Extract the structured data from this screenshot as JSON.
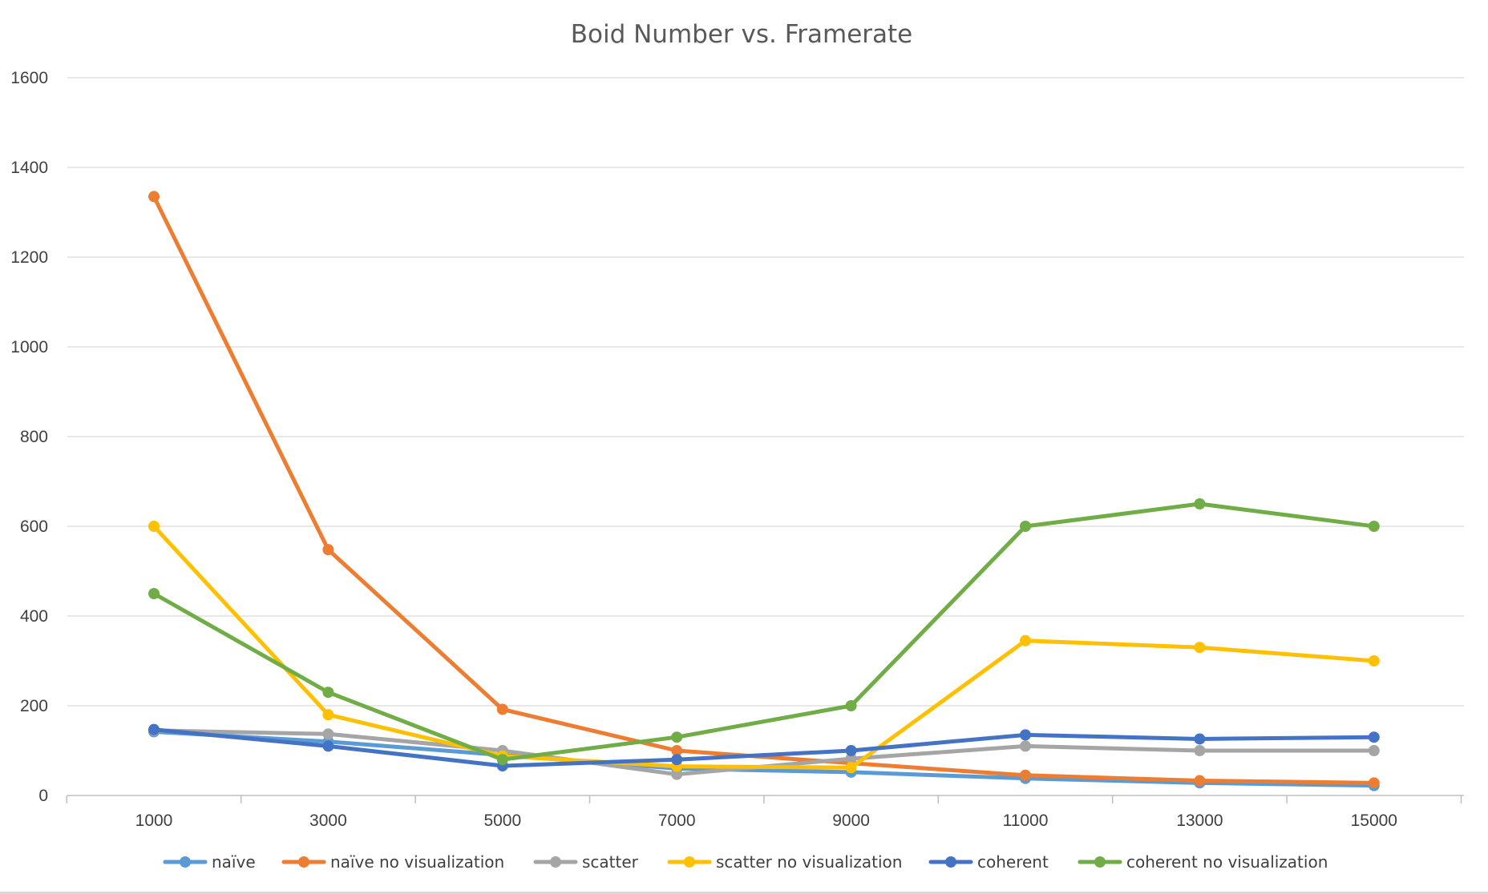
{
  "chart_data": {
    "type": "line",
    "title": "Boid Number vs. Framerate",
    "xlabel": "",
    "ylabel": "",
    "categories": [
      "1000",
      "3000",
      "5000",
      "7000",
      "9000",
      "11000",
      "13000",
      "15000"
    ],
    "ylim": [
      0,
      1600
    ],
    "yticks": [
      "0",
      "200",
      "400",
      "600",
      "800",
      "1000",
      "1200",
      "1400",
      "1600"
    ],
    "grid": "horizontal",
    "legend_position": "bottom",
    "series": [
      {
        "name": "naïve",
        "color": "#5b9bd5",
        "values": [
          142,
          120,
          90,
          60,
          52,
          38,
          28,
          22
        ]
      },
      {
        "name": "naïve no visualization",
        "color": "#ed7d31",
        "values": [
          1335,
          548,
          192,
          100,
          72,
          45,
          33,
          28
        ]
      },
      {
        "name": "scatter",
        "color": "#a5a5a5",
        "values": [
          145,
          137,
          100,
          47,
          82,
          110,
          100,
          100
        ]
      },
      {
        "name": "scatter no visualization",
        "color": "#ffc000",
        "values": [
          600,
          180,
          88,
          65,
          62,
          345,
          330,
          300
        ]
      },
      {
        "name": "coherent",
        "color": "#4472c4",
        "values": [
          147,
          110,
          66,
          80,
          100,
          135,
          126,
          130
        ]
      },
      {
        "name": "coherent no visualization",
        "color": "#70ad47",
        "values": [
          450,
          230,
          80,
          130,
          200,
          600,
          650,
          600
        ]
      }
    ]
  }
}
